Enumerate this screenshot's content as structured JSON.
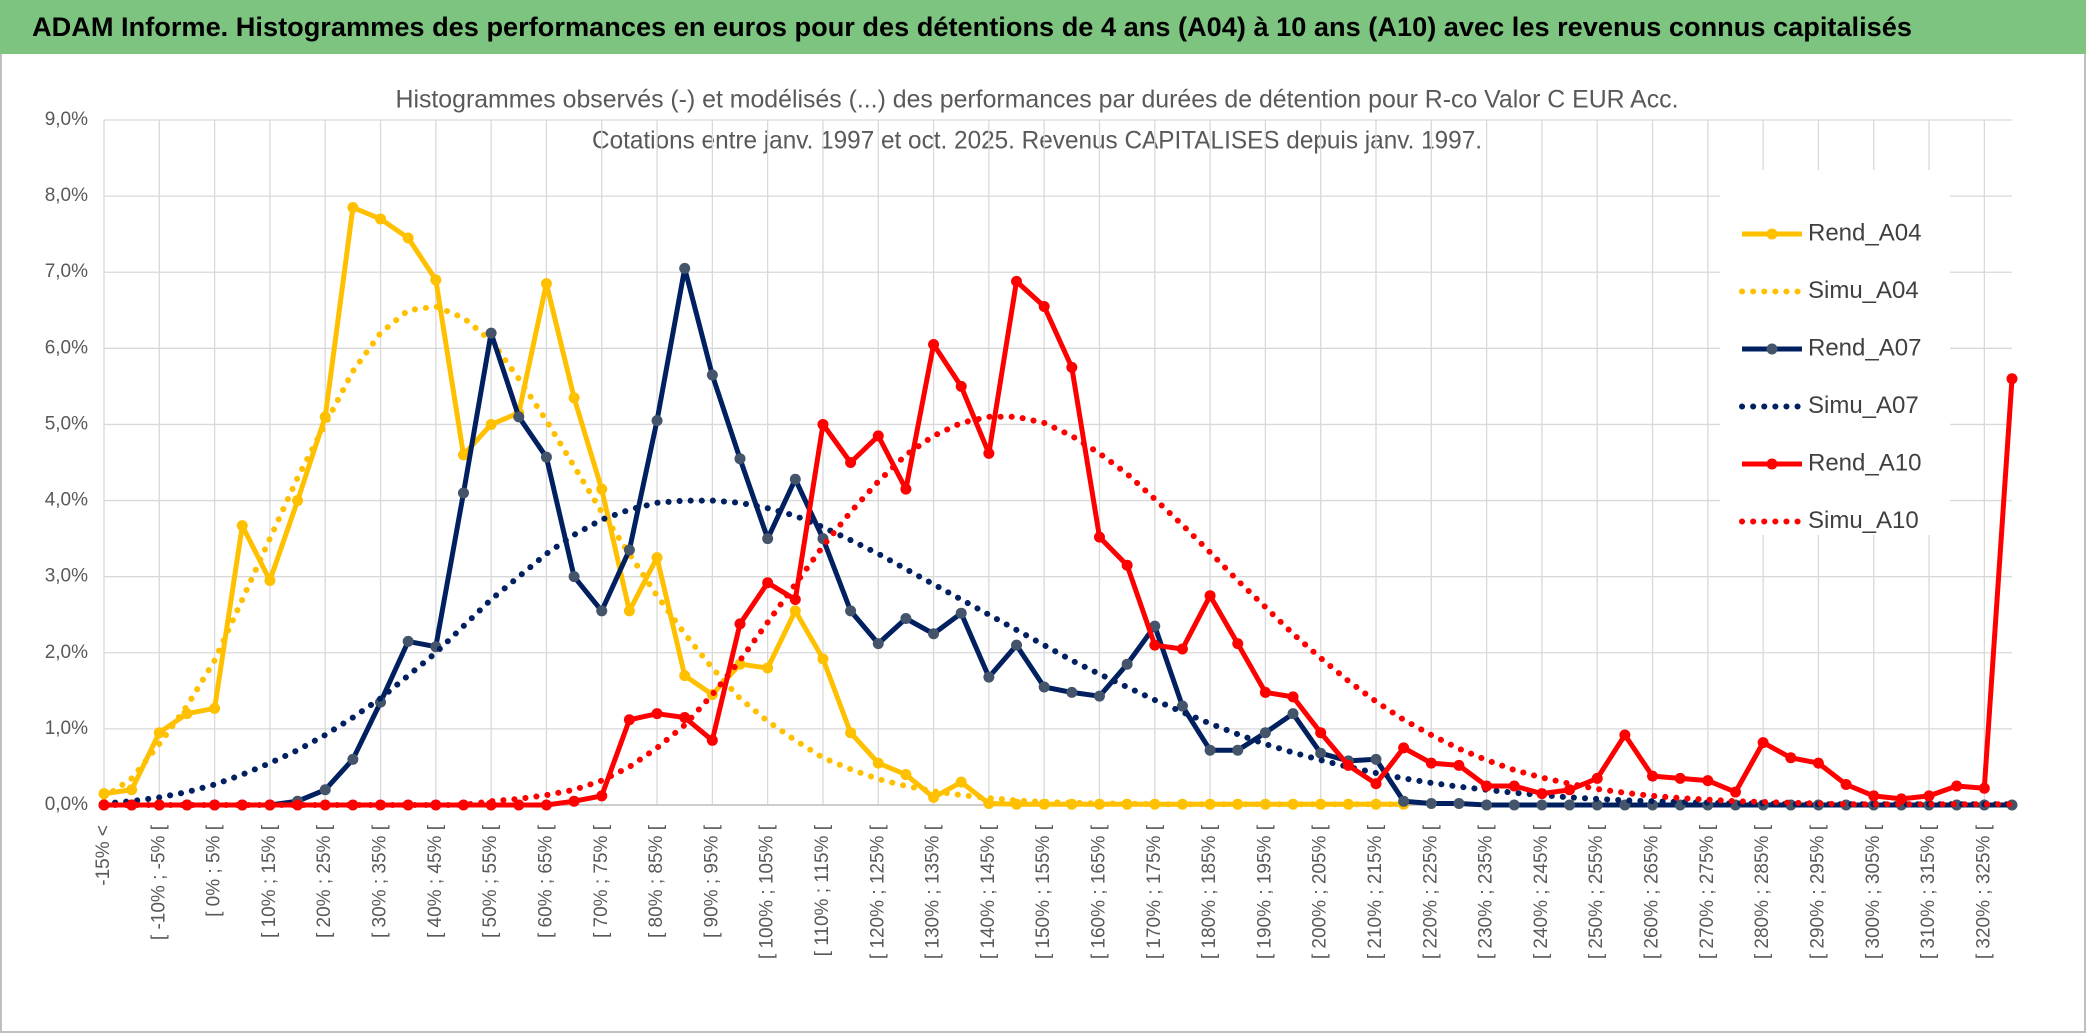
{
  "header": {
    "title": "ADAM Informe. Histogrammes des performances en euros pour des détentions de 4 ans (A04) à 10 ans (A10) avec les revenus connus capitalisés"
  },
  "chart_data": {
    "type": "line",
    "title": "Histogrammes observés (-) et modélisés (...) des performances par durées de détention pour R-co Valor C EUR Acc.",
    "subtitle": "Cotations entre janv. 1997 et oct. 2025. Revenus CAPITALISES depuis janv. 1997.",
    "categories": [
      "-15% <",
      null,
      "[ -10% ; -5% [",
      null,
      "[ 0% ; 5% [",
      null,
      "[ 10% ; 15% [",
      null,
      "[ 20% ; 25% [",
      null,
      "[ 30% ; 35% [",
      null,
      "[ 40% ; 45% [",
      null,
      "[ 50% ; 55% [",
      null,
      "[ 60% ; 65% [",
      null,
      "[ 70% ; 75% [",
      null,
      "[ 80% ; 85% [",
      null,
      "[ 90% ; 95% [",
      null,
      "[ 100% ; 105% [",
      null,
      "[ 110% ; 115% [",
      null,
      "[ 120% ; 125% [",
      null,
      "[ 130% ; 135% [",
      null,
      "[ 140% ; 145% [",
      null,
      "[ 150% ; 155% [",
      null,
      "[ 160% ; 165% [",
      null,
      "[ 170% ; 175% [",
      null,
      "[ 180% ; 185% [",
      null,
      "[ 190% ; 195% [",
      null,
      "[ 200% ; 205% [",
      null,
      "[ 210% ; 215% [",
      null,
      "[ 220% ; 225% [",
      null,
      "[ 230% ; 235% [",
      null,
      "[ 240% ; 245% [",
      null,
      "[ 250% ; 255% [",
      null,
      "[ 260% ; 265% [",
      null,
      "[ 270% ; 275% [",
      null,
      "[ 280% ; 285% [",
      null,
      "[ 290% ; 295% [",
      null,
      "[ 300% ; 305% [",
      null,
      "[ 310% ; 315% [",
      null,
      "[ 320% ; 325% [",
      null
    ],
    "ylim": [
      0,
      9
    ],
    "yticks": [
      {
        "value": 0,
        "label": "0,0%"
      },
      {
        "value": 1,
        "label": "1,0%"
      },
      {
        "value": 2,
        "label": "2,0%"
      },
      {
        "value": 3,
        "label": "3,0%"
      },
      {
        "value": 4,
        "label": "4,0%"
      },
      {
        "value": 5,
        "label": "5,0%"
      },
      {
        "value": 6,
        "label": "6,0%"
      },
      {
        "value": 7,
        "label": "7,0%"
      },
      {
        "value": 8,
        "label": "8,0%"
      },
      {
        "value": 9,
        "label": "9,0%"
      }
    ],
    "grid": true,
    "legend": "right",
    "series": [
      {
        "name": "Rend_A04",
        "color": "#FFC000",
        "style": "solid",
        "marker_color": "#FFC000",
        "values": [
          0.15,
          0.2,
          0.95,
          1.2,
          1.27,
          3.67,
          2.95,
          4.0,
          5.1,
          7.85,
          7.7,
          7.45,
          6.9,
          4.6,
          5.0,
          5.15,
          6.85,
          5.35,
          4.15,
          2.55,
          3.25,
          1.7,
          1.45,
          1.85,
          1.8,
          2.55,
          1.92,
          0.95,
          0.55,
          0.4,
          0.1,
          0.3,
          0.02,
          0.01,
          0.01,
          0.01,
          0.01,
          0.01,
          0.01,
          0.01,
          0.01,
          0.01,
          0.01,
          0.01,
          0.01,
          0.01,
          0.01,
          0.01,
          null,
          null,
          null,
          null,
          null,
          null,
          null,
          null,
          null,
          null,
          null,
          null,
          null,
          null,
          null,
          null,
          null,
          null,
          null,
          null,
          null,
          null
        ]
      },
      {
        "name": "Simu_A04",
        "color": "#FFC000",
        "style": "dotted",
        "values": [
          0.1,
          0.35,
          0.8,
          1.3,
          1.9,
          2.7,
          3.5,
          4.3,
          5.0,
          5.7,
          6.2,
          6.5,
          6.55,
          6.4,
          6.1,
          5.6,
          5.05,
          4.45,
          3.85,
          3.3,
          2.75,
          2.25,
          1.8,
          1.4,
          1.1,
          0.85,
          0.62,
          0.47,
          0.34,
          0.25,
          0.18,
          0.13,
          0.09,
          0.06,
          0.04,
          0.03,
          0.02,
          0.02,
          0.01,
          0.01,
          0.01,
          0.01,
          0.01,
          0.01,
          0.01,
          0.01,
          0.01,
          0.01,
          null,
          null,
          null,
          null,
          null,
          null,
          null,
          null,
          null,
          null,
          null,
          null,
          null,
          null,
          null,
          null,
          null,
          null,
          null,
          null,
          null,
          null
        ]
      },
      {
        "name": "Rend_A07",
        "color": "#002060",
        "style": "solid",
        "marker_color": "#44546A",
        "values": [
          0,
          0,
          0,
          0,
          0,
          0,
          0,
          0.05,
          0.2,
          0.6,
          1.35,
          2.15,
          2.08,
          4.1,
          6.2,
          5.1,
          4.57,
          3.0,
          2.55,
          3.35,
          5.05,
          7.05,
          5.65,
          4.55,
          3.5,
          4.28,
          3.5,
          2.55,
          2.12,
          2.45,
          2.25,
          2.52,
          1.68,
          2.1,
          1.55,
          1.48,
          1.43,
          1.85,
          2.35,
          1.3,
          0.72,
          0.72,
          0.95,
          1.2,
          0.68,
          0.58,
          0.6,
          0.05,
          0.02,
          0.02,
          0,
          0,
          0,
          0,
          0,
          0,
          0,
          0,
          0,
          0,
          0,
          0,
          0,
          0,
          0,
          0,
          0,
          0,
          0,
          0
        ]
      },
      {
        "name": "Simu_A07",
        "color": "#002060",
        "style": "dotted",
        "values": [
          0.02,
          0.05,
          0.1,
          0.17,
          0.27,
          0.4,
          0.55,
          0.72,
          0.92,
          1.15,
          1.4,
          1.7,
          2.0,
          2.35,
          2.7,
          3.0,
          3.3,
          3.55,
          3.75,
          3.88,
          3.97,
          4.0,
          4.0,
          3.97,
          3.9,
          3.8,
          3.65,
          3.48,
          3.3,
          3.1,
          2.9,
          2.7,
          2.5,
          2.3,
          2.1,
          1.9,
          1.72,
          1.55,
          1.38,
          1.22,
          1.07,
          0.93,
          0.8,
          0.69,
          0.59,
          0.5,
          0.42,
          0.35,
          0.29,
          0.24,
          0.2,
          0.16,
          0.13,
          0.1,
          0.08,
          0.06,
          0.05,
          0.04,
          0.03,
          0.02,
          0.02,
          0.01,
          0.01,
          0.01,
          0.01,
          0.01,
          0.01,
          0.01,
          0.01,
          0.01
        ]
      },
      {
        "name": "Rend_A10",
        "color": "#FF0000",
        "style": "solid",
        "marker_color": "#FF0000",
        "values": [
          0,
          0,
          0,
          0,
          0,
          0,
          0,
          0,
          0,
          0,
          0,
          0,
          0,
          0,
          0,
          0,
          0,
          0.05,
          0.12,
          1.12,
          1.2,
          1.15,
          0.85,
          2.38,
          2.92,
          2.7,
          5.0,
          4.5,
          4.85,
          4.15,
          6.05,
          5.5,
          4.62,
          6.88,
          6.55,
          5.75,
          3.52,
          3.15,
          2.1,
          2.05,
          2.75,
          2.12,
          1.48,
          1.42,
          0.95,
          0.52,
          0.28,
          0.75,
          0.55,
          0.52,
          0.25,
          0.25,
          0.15,
          0.2,
          0.35,
          0.92,
          0.38,
          0.35,
          0.32,
          0.17,
          0.82,
          0.62,
          0.55,
          0.27,
          0.12,
          0.08,
          0.12,
          0.25,
          0.22,
          5.6
        ]
      },
      {
        "name": "Simu_A10",
        "color": "#FF0000",
        "style": "dotted",
        "values": [
          0,
          0,
          0,
          0,
          0,
          0,
          0,
          0,
          0,
          0,
          0,
          0,
          0,
          0,
          0.05,
          0.08,
          0.13,
          0.2,
          0.32,
          0.5,
          0.75,
          1.05,
          1.45,
          1.9,
          2.4,
          2.9,
          3.4,
          3.85,
          4.25,
          4.6,
          4.85,
          5.02,
          5.1,
          5.1,
          5.02,
          4.85,
          4.62,
          4.35,
          4.02,
          3.68,
          3.32,
          2.95,
          2.6,
          2.25,
          1.93,
          1.63,
          1.36,
          1.12,
          0.92,
          0.74,
          0.59,
          0.46,
          0.36,
          0.28,
          0.21,
          0.16,
          0.12,
          0.09,
          0.07,
          0.05,
          0.04,
          0.03,
          0.02,
          0.01,
          0.01,
          0.01,
          0.01,
          0.01,
          0.01,
          0.01
        ]
      }
    ]
  }
}
